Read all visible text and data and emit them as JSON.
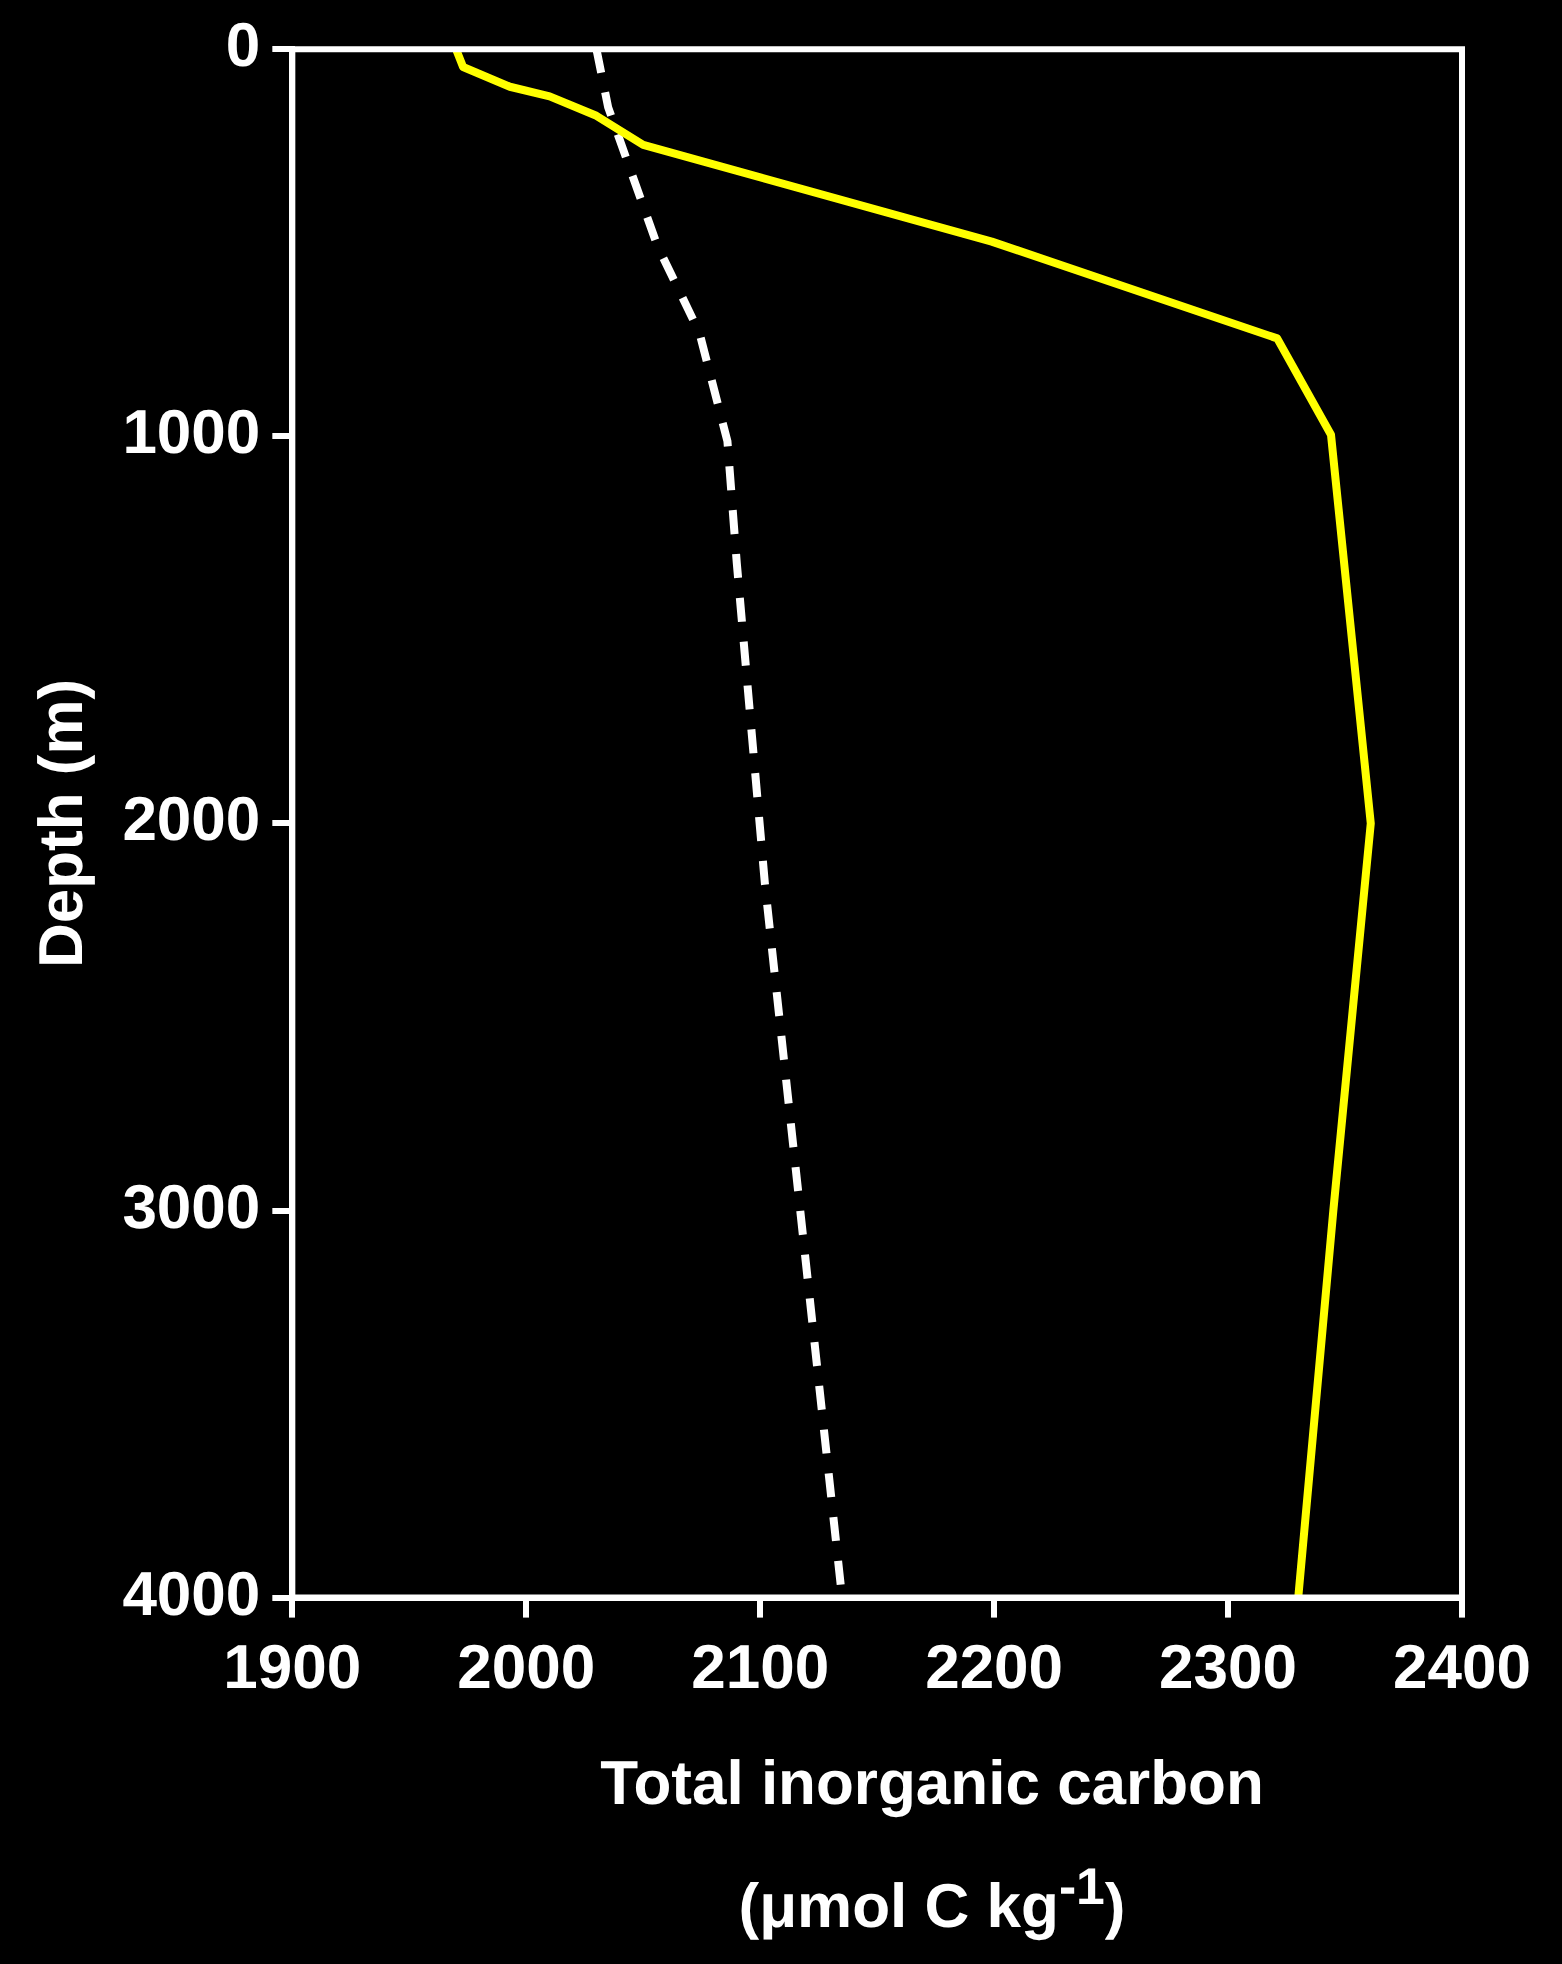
{
  "chart_data": {
    "type": "line",
    "xlabel": "Total inorganic carbon\n(μmol C kg$^{-1}$)",
    "ylabel": "Depth (m)",
    "xlim": [
      1900,
      2400
    ],
    "xticks": [
      1900,
      2000,
      2100,
      2200,
      2300,
      2400
    ],
    "ylim": [
      4000,
      0
    ],
    "yticks": [
      0,
      1000,
      2000,
      3000,
      4000
    ],
    "grid": false,
    "legend": false,
    "marker": "none",
    "series": [
      {
        "color": "#ffff00",
        "line_style": "solid",
        "x": [
          1970,
          1973,
          1993,
          2010,
          2030,
          2050,
          2199,
          2321,
          2344,
          2361,
          2345,
          2330
        ],
        "values": [
          0,
          46,
          97,
          122,
          172,
          247,
          497,
          747,
          996,
          2000,
          3000,
          4000
        ]
      },
      {
        "color": "#ffffff",
        "line_style": "dashed",
        "x": [
          2030,
          2035,
          2056,
          2074,
          2086,
          2090,
          2102,
          2135
        ],
        "values": [
          0,
          150,
          507,
          732,
          1013,
          1328,
          2155,
          4000
        ]
      }
    ]
  }
}
